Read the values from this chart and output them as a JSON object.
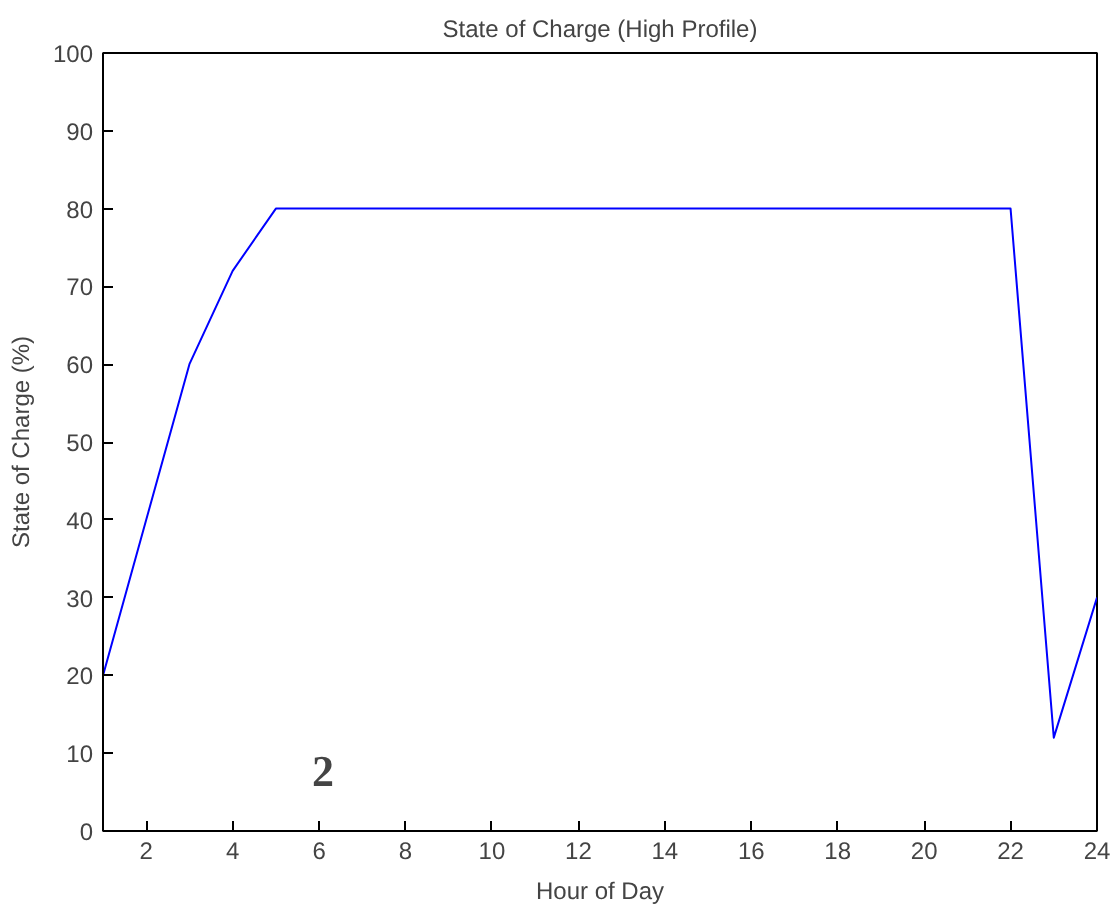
{
  "chart_data": {
    "type": "line",
    "title": "State of Charge (High Profile)",
    "xlabel": "Hour of Day",
    "ylabel": "State of Charge (%)",
    "x": [
      1,
      2,
      3,
      4,
      5,
      6,
      7,
      8,
      9,
      10,
      11,
      12,
      13,
      14,
      15,
      16,
      17,
      18,
      19,
      20,
      21,
      22,
      23,
      24
    ],
    "series": [
      {
        "color": "#0000ff",
        "values": [
          20,
          40,
          60,
          72,
          80,
          80,
          80,
          80,
          80,
          80,
          80,
          80,
          80,
          80,
          80,
          80,
          80,
          80,
          80,
          80,
          80,
          80,
          12,
          30
        ]
      }
    ],
    "xlim": [
      1,
      24
    ],
    "xticks": [
      2,
      4,
      6,
      8,
      10,
      12,
      14,
      16,
      18,
      20,
      22,
      24
    ],
    "ylim": [
      0,
      100
    ],
    "yticks": [
      0,
      10,
      20,
      30,
      40,
      50,
      60,
      70,
      80,
      90,
      100
    ],
    "grid": false,
    "marker": "none",
    "line_style": "solid",
    "annotations": [
      "2"
    ]
  }
}
